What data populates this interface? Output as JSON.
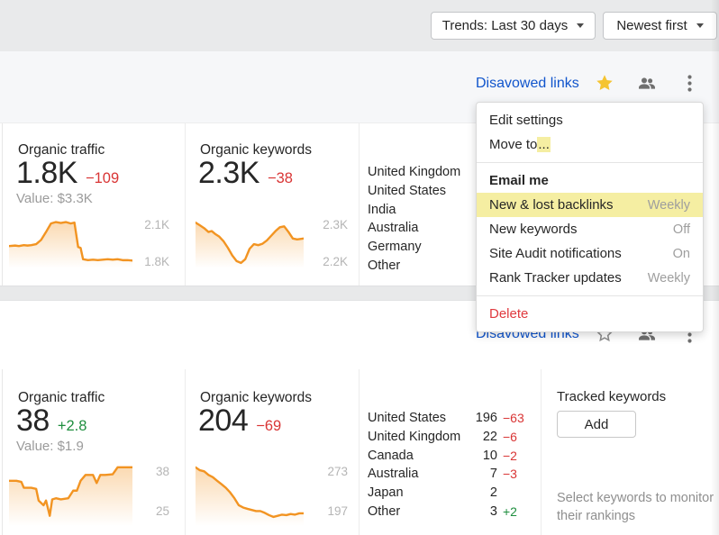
{
  "topbar": {
    "trends_label": "Trends: Last 30 days",
    "sort_label": "Newest first"
  },
  "menu": {
    "items": [
      {
        "type": "item",
        "label": "Edit settings"
      },
      {
        "type": "item",
        "label": "Move to",
        "suffix": "...",
        "suffix_highlighted": true
      },
      {
        "type": "divider"
      },
      {
        "type": "header",
        "label": "Email me"
      },
      {
        "type": "item",
        "label": "New & lost backlinks",
        "right": "Weekly",
        "highlighted": true
      },
      {
        "type": "item",
        "label": "New keywords",
        "right": "Off"
      },
      {
        "type": "item",
        "label": "Site Audit notifications",
        "right": "On"
      },
      {
        "type": "item",
        "label": "Rank Tracker updates",
        "right": "Weekly"
      },
      {
        "type": "divider"
      },
      {
        "type": "item",
        "label": "Delete",
        "danger": true
      }
    ]
  },
  "cards": [
    {
      "title": "Disavowed links",
      "starred": true,
      "traffic": {
        "label": "Organic traffic",
        "value": "1.8K",
        "delta": "−109",
        "value_line": "Value: $3.3K"
      },
      "keywords": {
        "label": "Organic keywords",
        "value": "2.3K",
        "delta": "−38"
      },
      "countries": [
        {
          "name": "United Kingdom"
        },
        {
          "name": "United States"
        },
        {
          "name": "India"
        },
        {
          "name": "Australia"
        },
        {
          "name": "Germany"
        },
        {
          "name": "Other"
        }
      ]
    },
    {
      "title": "Disavowed links",
      "starred": false,
      "traffic": {
        "label": "Organic traffic",
        "value": "38",
        "delta": "+2.8",
        "value_line": "Value: $1.9"
      },
      "keywords": {
        "label": "Organic keywords",
        "value": "204",
        "delta": "−69"
      },
      "countries": [
        {
          "name": "United States",
          "value": "196",
          "delta": "−63",
          "delta_color": "red"
        },
        {
          "name": "United Kingdom",
          "value": "22",
          "delta": "−6",
          "delta_color": "red"
        },
        {
          "name": "Canada",
          "value": "10",
          "delta": "−2",
          "delta_color": "red"
        },
        {
          "name": "Australia",
          "value": "7",
          "delta": "−3",
          "delta_color": "red"
        },
        {
          "name": "Japan",
          "value": "2",
          "delta": "",
          "delta_color": ""
        },
        {
          "name": "Other",
          "value": "3",
          "delta": "+2",
          "delta_color": "green"
        }
      ],
      "tracked": {
        "label": "Tracked keywords",
        "add_button": "Add",
        "hint": "Select keywords to monitor their rankings"
      }
    }
  ],
  "chart_data": [
    {
      "type": "area",
      "name": "card1-organic-traffic-trend",
      "y_top_label": "2.1K",
      "y_bottom_label": "1.8K",
      "ylim": [
        1800,
        2100
      ],
      "points": [
        [
          0,
          0.42
        ],
        [
          0.05,
          0.43
        ],
        [
          0.08,
          0.42
        ],
        [
          0.12,
          0.44
        ],
        [
          0.15,
          0.43
        ],
        [
          0.18,
          0.44
        ],
        [
          0.22,
          0.46
        ],
        [
          0.26,
          0.55
        ],
        [
          0.3,
          0.72
        ],
        [
          0.34,
          0.9
        ],
        [
          0.38,
          0.93
        ],
        [
          0.42,
          0.91
        ],
        [
          0.46,
          0.93
        ],
        [
          0.5,
          0.9
        ],
        [
          0.53,
          0.92
        ],
        [
          0.56,
          0.4
        ],
        [
          0.58,
          0.38
        ],
        [
          0.6,
          0.14
        ],
        [
          0.64,
          0.12
        ],
        [
          0.68,
          0.13
        ],
        [
          0.72,
          0.12
        ],
        [
          0.76,
          0.13
        ],
        [
          0.8,
          0.14
        ],
        [
          0.84,
          0.13
        ],
        [
          0.88,
          0.14
        ],
        [
          0.92,
          0.12
        ],
        [
          0.96,
          0.12
        ],
        [
          1,
          0.11
        ]
      ]
    },
    {
      "type": "area",
      "name": "card1-organic-keywords-trend",
      "y_top_label": "2.3K",
      "y_bottom_label": "2.2K",
      "ylim": [
        2200,
        2300
      ],
      "points": [
        [
          0,
          0.92
        ],
        [
          0.04,
          0.86
        ],
        [
          0.08,
          0.8
        ],
        [
          0.12,
          0.72
        ],
        [
          0.15,
          0.74
        ],
        [
          0.18,
          0.68
        ],
        [
          0.22,
          0.62
        ],
        [
          0.26,
          0.52
        ],
        [
          0.3,
          0.38
        ],
        [
          0.34,
          0.22
        ],
        [
          0.38,
          0.1
        ],
        [
          0.42,
          0.06
        ],
        [
          0.46,
          0.14
        ],
        [
          0.5,
          0.36
        ],
        [
          0.54,
          0.46
        ],
        [
          0.58,
          0.44
        ],
        [
          0.62,
          0.47
        ],
        [
          0.66,
          0.54
        ],
        [
          0.7,
          0.64
        ],
        [
          0.74,
          0.74
        ],
        [
          0.78,
          0.82
        ],
        [
          0.82,
          0.84
        ],
        [
          0.86,
          0.72
        ],
        [
          0.9,
          0.58
        ],
        [
          0.94,
          0.56
        ],
        [
          1,
          0.58
        ]
      ]
    },
    {
      "type": "area",
      "name": "card2-organic-traffic-trend",
      "y_top_label": "38",
      "y_bottom_label": "25",
      "ylim": [
        25,
        38
      ],
      "points": [
        [
          0,
          0.72
        ],
        [
          0.06,
          0.72
        ],
        [
          0.1,
          0.7
        ],
        [
          0.12,
          0.6
        ],
        [
          0.18,
          0.6
        ],
        [
          0.22,
          0.58
        ],
        [
          0.24,
          0.38
        ],
        [
          0.28,
          0.3
        ],
        [
          0.3,
          0.38
        ],
        [
          0.33,
          0.12
        ],
        [
          0.35,
          0.4
        ],
        [
          0.38,
          0.42
        ],
        [
          0.42,
          0.4
        ],
        [
          0.48,
          0.42
        ],
        [
          0.52,
          0.55
        ],
        [
          0.55,
          0.55
        ],
        [
          0.58,
          0.72
        ],
        [
          0.62,
          0.82
        ],
        [
          0.68,
          0.82
        ],
        [
          0.71,
          0.68
        ],
        [
          0.74,
          0.82
        ],
        [
          0.78,
          0.82
        ],
        [
          0.84,
          0.83
        ],
        [
          0.88,
          0.95
        ],
        [
          0.94,
          0.95
        ],
        [
          1,
          0.95
        ]
      ]
    },
    {
      "type": "area",
      "name": "card2-organic-keywords-trend",
      "y_top_label": "273",
      "y_bottom_label": "197",
      "ylim": [
        197,
        273
      ],
      "points": [
        [
          0,
          0.95
        ],
        [
          0.04,
          0.9
        ],
        [
          0.08,
          0.88
        ],
        [
          0.12,
          0.82
        ],
        [
          0.16,
          0.78
        ],
        [
          0.2,
          0.72
        ],
        [
          0.24,
          0.66
        ],
        [
          0.28,
          0.6
        ],
        [
          0.32,
          0.52
        ],
        [
          0.36,
          0.42
        ],
        [
          0.4,
          0.3
        ],
        [
          0.44,
          0.26
        ],
        [
          0.48,
          0.24
        ],
        [
          0.52,
          0.22
        ],
        [
          0.56,
          0.2
        ],
        [
          0.6,
          0.2
        ],
        [
          0.64,
          0.17
        ],
        [
          0.68,
          0.13
        ],
        [
          0.72,
          0.1
        ],
        [
          0.76,
          0.12
        ],
        [
          0.8,
          0.14
        ],
        [
          0.84,
          0.13
        ],
        [
          0.88,
          0.15
        ],
        [
          0.92,
          0.14
        ],
        [
          0.96,
          0.16
        ],
        [
          1,
          0.16
        ]
      ]
    }
  ],
  "colors": {
    "accent_blue": "#1155cc",
    "star_yellow": "#f5c431",
    "icon_gray": "#6f6f6f",
    "spark_orange": "#f29422",
    "delta_red": "#d93535",
    "delta_green": "#1e8e3e",
    "menu_highlight": "#f5eea2",
    "danger_red": "#e0393e",
    "topbar_bg": "#e9eaeb",
    "card_header_bg": "#f6f7f9"
  }
}
